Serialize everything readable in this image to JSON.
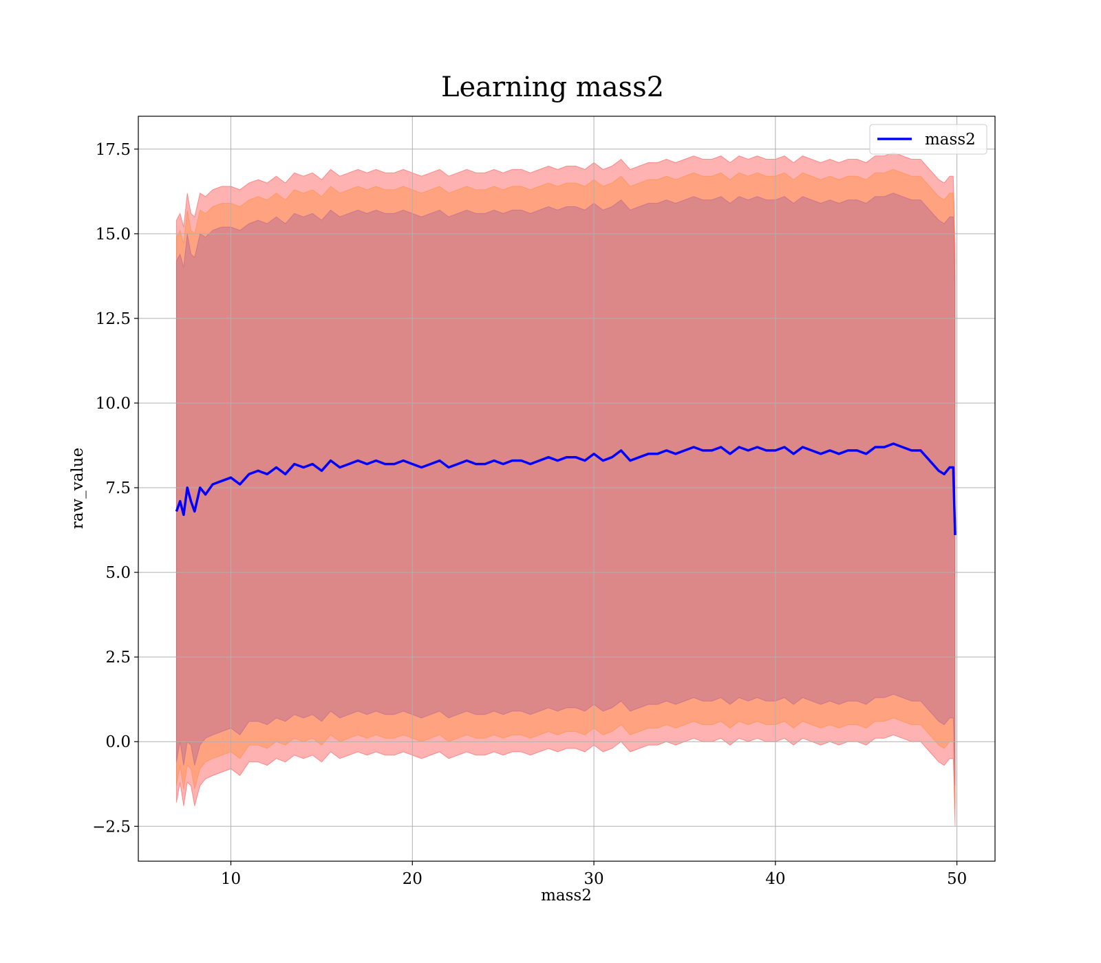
{
  "chart_data": {
    "type": "line",
    "title": "Learning mass2",
    "xlabel": "mass2",
    "ylabel": "raw_value",
    "xlim": [
      4.9,
      52.1
    ],
    "ylim": [
      -3.53,
      18.47
    ],
    "x_ticks": [
      10,
      20,
      30,
      40,
      50
    ],
    "x_tick_labels": [
      "10",
      "20",
      "30",
      "40",
      "50"
    ],
    "y_ticks": [
      -2.5,
      0.0,
      2.5,
      5.0,
      7.5,
      10.0,
      12.5,
      15.0,
      17.5
    ],
    "y_tick_labels": [
      "−2.5",
      "0.0",
      "2.5",
      "5.0",
      "7.5",
      "10.0",
      "12.5",
      "15.0",
      "17.5"
    ],
    "grid": true,
    "legend_position": "top-right",
    "series": [
      {
        "name": "mass2",
        "color": "#0000ff",
        "x": [
          7.0,
          7.2,
          7.4,
          7.6,
          7.8,
          8.0,
          8.3,
          8.6,
          9.0,
          9.5,
          10.0,
          10.5,
          11.0,
          11.5,
          12.0,
          12.5,
          13.0,
          13.5,
          14.0,
          14.5,
          15.0,
          15.5,
          16.0,
          16.5,
          17.0,
          17.5,
          18.0,
          18.5,
          19.0,
          19.5,
          20.0,
          20.5,
          21.0,
          21.5,
          22.0,
          22.5,
          23.0,
          23.5,
          24.0,
          24.5,
          25.0,
          25.5,
          26.0,
          26.5,
          27.0,
          27.5,
          28.0,
          28.5,
          29.0,
          29.5,
          30.0,
          30.5,
          31.0,
          31.5,
          32.0,
          32.5,
          33.0,
          33.5,
          34.0,
          34.5,
          35.0,
          35.5,
          36.0,
          36.5,
          37.0,
          37.5,
          38.0,
          38.5,
          39.0,
          39.5,
          40.0,
          40.5,
          41.0,
          41.5,
          42.0,
          42.5,
          43.0,
          43.5,
          44.0,
          44.5,
          45.0,
          45.5,
          46.0,
          46.5,
          47.0,
          47.5,
          48.0,
          48.5,
          49.0,
          49.3,
          49.6,
          49.8,
          49.9
        ],
        "y": [
          6.8,
          7.1,
          6.7,
          7.5,
          7.1,
          6.8,
          7.5,
          7.3,
          7.6,
          7.7,
          7.8,
          7.6,
          7.9,
          8.0,
          7.9,
          8.1,
          7.9,
          8.2,
          8.1,
          8.2,
          8.0,
          8.3,
          8.1,
          8.2,
          8.3,
          8.2,
          8.3,
          8.2,
          8.2,
          8.3,
          8.2,
          8.1,
          8.2,
          8.3,
          8.1,
          8.2,
          8.3,
          8.2,
          8.2,
          8.3,
          8.2,
          8.3,
          8.3,
          8.2,
          8.3,
          8.4,
          8.3,
          8.4,
          8.4,
          8.3,
          8.5,
          8.3,
          8.4,
          8.6,
          8.3,
          8.4,
          8.5,
          8.5,
          8.6,
          8.5,
          8.6,
          8.7,
          8.6,
          8.6,
          8.7,
          8.5,
          8.7,
          8.6,
          8.7,
          8.6,
          8.6,
          8.7,
          8.5,
          8.7,
          8.6,
          8.5,
          8.6,
          8.5,
          8.6,
          8.6,
          8.5,
          8.7,
          8.7,
          8.8,
          8.7,
          8.6,
          8.6,
          8.3,
          8.0,
          7.9,
          8.1,
          8.1,
          6.1
        ]
      }
    ],
    "bands": [
      {
        "description_color": "#ff0000",
        "x": [
          7.0,
          7.2,
          7.4,
          7.6,
          7.8,
          8.0,
          8.3,
          8.6,
          9.0,
          9.5,
          10.0,
          10.5,
          11.0,
          11.5,
          12.0,
          12.5,
          13.0,
          13.5,
          14.0,
          14.5,
          15.0,
          15.5,
          16.0,
          16.5,
          17.0,
          17.5,
          18.0,
          18.5,
          19.0,
          19.5,
          20.0,
          20.5,
          21.0,
          21.5,
          22.0,
          22.5,
          23.0,
          23.5,
          24.0,
          24.5,
          25.0,
          25.5,
          26.0,
          26.5,
          27.0,
          27.5,
          28.0,
          28.5,
          29.0,
          29.5,
          30.0,
          30.5,
          31.0,
          31.5,
          32.0,
          32.5,
          33.0,
          33.5,
          34.0,
          34.5,
          35.0,
          35.5,
          36.0,
          36.5,
          37.0,
          37.5,
          38.0,
          38.5,
          39.0,
          39.5,
          40.0,
          40.5,
          41.0,
          41.5,
          42.0,
          42.5,
          43.0,
          43.5,
          44.0,
          44.5,
          45.0,
          45.5,
          46.0,
          46.5,
          47.0,
          47.5,
          48.0,
          48.5,
          49.0,
          49.3,
          49.6,
          49.8,
          49.9
        ],
        "lower": [
          -1.8,
          -1.2,
          -1.9,
          -1.2,
          -1.3,
          -1.9,
          -1.3,
          -1.1,
          -1.0,
          -0.9,
          -0.8,
          -1.0,
          -0.6,
          -0.6,
          -0.7,
          -0.5,
          -0.6,
          -0.4,
          -0.5,
          -0.4,
          -0.6,
          -0.3,
          -0.5,
          -0.4,
          -0.3,
          -0.4,
          -0.3,
          -0.4,
          -0.4,
          -0.3,
          -0.4,
          -0.5,
          -0.4,
          -0.3,
          -0.5,
          -0.4,
          -0.3,
          -0.4,
          -0.4,
          -0.3,
          -0.4,
          -0.3,
          -0.3,
          -0.4,
          -0.3,
          -0.2,
          -0.3,
          -0.2,
          -0.2,
          -0.3,
          -0.1,
          -0.3,
          -0.2,
          0.0,
          -0.3,
          -0.2,
          -0.1,
          -0.1,
          0.0,
          -0.1,
          0.0,
          0.1,
          0.0,
          0.0,
          0.1,
          -0.1,
          0.1,
          0.0,
          0.1,
          0.0,
          0.0,
          0.1,
          -0.1,
          0.1,
          0.0,
          -0.1,
          0.0,
          -0.1,
          0.0,
          0.0,
          -0.1,
          0.1,
          0.1,
          0.2,
          0.1,
          0.0,
          0.0,
          -0.3,
          -0.6,
          -0.7,
          -0.5,
          -0.5,
          -2.5
        ],
        "upper": [
          15.4,
          15.6,
          15.2,
          16.2,
          15.6,
          15.5,
          16.2,
          16.1,
          16.3,
          16.4,
          16.4,
          16.3,
          16.5,
          16.6,
          16.5,
          16.7,
          16.5,
          16.8,
          16.7,
          16.8,
          16.6,
          16.9,
          16.7,
          16.8,
          16.9,
          16.8,
          16.9,
          16.8,
          16.8,
          16.9,
          16.8,
          16.7,
          16.8,
          16.9,
          16.7,
          16.8,
          16.9,
          16.8,
          16.8,
          16.9,
          16.8,
          16.9,
          16.9,
          16.8,
          16.9,
          17.0,
          16.9,
          17.0,
          17.0,
          16.9,
          17.1,
          16.9,
          17.0,
          17.2,
          16.9,
          17.0,
          17.1,
          17.1,
          17.2,
          17.1,
          17.2,
          17.3,
          17.2,
          17.2,
          17.3,
          17.1,
          17.3,
          17.2,
          17.3,
          17.2,
          17.2,
          17.3,
          17.1,
          17.3,
          17.2,
          17.1,
          17.2,
          17.1,
          17.2,
          17.2,
          17.1,
          17.3,
          17.3,
          17.4,
          17.3,
          17.2,
          17.2,
          16.9,
          16.6,
          16.5,
          16.7,
          16.7,
          14.7
        ]
      },
      {
        "description_color": "#ff7f0e",
        "x": [
          7.0,
          7.2,
          7.4,
          7.6,
          7.8,
          8.0,
          8.3,
          8.6,
          9.0,
          9.5,
          10.0,
          10.5,
          11.0,
          11.5,
          12.0,
          12.5,
          13.0,
          13.5,
          14.0,
          14.5,
          15.0,
          15.5,
          16.0,
          16.5,
          17.0,
          17.5,
          18.0,
          18.5,
          19.0,
          19.5,
          20.0,
          20.5,
          21.0,
          21.5,
          22.0,
          22.5,
          23.0,
          23.5,
          24.0,
          24.5,
          25.0,
          25.5,
          26.0,
          26.5,
          27.0,
          27.5,
          28.0,
          28.5,
          29.0,
          29.5,
          30.0,
          30.5,
          31.0,
          31.5,
          32.0,
          32.5,
          33.0,
          33.5,
          34.0,
          34.5,
          35.0,
          35.5,
          36.0,
          36.5,
          37.0,
          37.5,
          38.0,
          38.5,
          39.0,
          39.5,
          40.0,
          40.5,
          41.0,
          41.5,
          42.0,
          42.5,
          43.0,
          43.5,
          44.0,
          44.5,
          45.0,
          45.5,
          46.0,
          46.5,
          47.0,
          47.5,
          48.0,
          48.5,
          49.0,
          49.3,
          49.6,
          49.8,
          49.9
        ],
        "lower": [
          -1.3,
          -0.7,
          -1.4,
          -0.7,
          -0.8,
          -1.4,
          -0.8,
          -0.6,
          -0.5,
          -0.4,
          -0.3,
          -0.5,
          -0.1,
          -0.1,
          -0.2,
          0.0,
          -0.1,
          0.1,
          0.0,
          0.1,
          -0.1,
          0.2,
          0.0,
          0.1,
          0.2,
          0.1,
          0.2,
          0.1,
          0.1,
          0.2,
          0.1,
          0.0,
          0.1,
          0.2,
          0.0,
          0.1,
          0.2,
          0.1,
          0.1,
          0.2,
          0.1,
          0.2,
          0.2,
          0.1,
          0.2,
          0.3,
          0.2,
          0.3,
          0.3,
          0.2,
          0.4,
          0.2,
          0.3,
          0.5,
          0.2,
          0.3,
          0.4,
          0.4,
          0.5,
          0.4,
          0.5,
          0.6,
          0.5,
          0.5,
          0.6,
          0.4,
          0.6,
          0.5,
          0.6,
          0.5,
          0.5,
          0.6,
          0.4,
          0.6,
          0.5,
          0.4,
          0.5,
          0.4,
          0.5,
          0.5,
          0.4,
          0.6,
          0.6,
          0.7,
          0.6,
          0.5,
          0.5,
          0.2,
          -0.1,
          -0.2,
          0.0,
          0.0,
          -2.0
        ],
        "upper": [
          14.9,
          15.1,
          14.7,
          15.7,
          15.1,
          15.0,
          15.7,
          15.6,
          15.8,
          15.9,
          15.9,
          15.8,
          16.0,
          16.1,
          16.0,
          16.2,
          16.0,
          16.3,
          16.2,
          16.3,
          16.1,
          16.4,
          16.2,
          16.3,
          16.4,
          16.3,
          16.4,
          16.3,
          16.3,
          16.4,
          16.3,
          16.2,
          16.3,
          16.4,
          16.2,
          16.3,
          16.4,
          16.3,
          16.3,
          16.4,
          16.3,
          16.4,
          16.4,
          16.3,
          16.4,
          16.5,
          16.4,
          16.5,
          16.5,
          16.4,
          16.6,
          16.4,
          16.5,
          16.7,
          16.4,
          16.5,
          16.6,
          16.6,
          16.7,
          16.6,
          16.7,
          16.8,
          16.7,
          16.7,
          16.8,
          16.6,
          16.8,
          16.7,
          16.8,
          16.7,
          16.7,
          16.8,
          16.6,
          16.8,
          16.7,
          16.6,
          16.7,
          16.6,
          16.7,
          16.7,
          16.6,
          16.8,
          16.8,
          16.9,
          16.8,
          16.7,
          16.7,
          16.4,
          16.1,
          16.0,
          16.2,
          16.2,
          14.2
        ]
      },
      {
        "description_color": "#8b4a9c",
        "x": [
          7.0,
          7.2,
          7.4,
          7.6,
          7.8,
          8.0,
          8.3,
          8.6,
          9.0,
          9.5,
          10.0,
          10.5,
          11.0,
          11.5,
          12.0,
          12.5,
          13.0,
          13.5,
          14.0,
          14.5,
          15.0,
          15.5,
          16.0,
          16.5,
          17.0,
          17.5,
          18.0,
          18.5,
          19.0,
          19.5,
          20.0,
          20.5,
          21.0,
          21.5,
          22.0,
          22.5,
          23.0,
          23.5,
          24.0,
          24.5,
          25.0,
          25.5,
          26.0,
          26.5,
          27.0,
          27.5,
          28.0,
          28.5,
          29.0,
          29.5,
          30.0,
          30.5,
          31.0,
          31.5,
          32.0,
          32.5,
          33.0,
          33.5,
          34.0,
          34.5,
          35.0,
          35.5,
          36.0,
          36.5,
          37.0,
          37.5,
          38.0,
          38.5,
          39.0,
          39.5,
          40.0,
          40.5,
          41.0,
          41.5,
          42.0,
          42.5,
          43.0,
          43.5,
          44.0,
          44.5,
          45.0,
          45.5,
          46.0,
          46.5,
          47.0,
          47.5,
          48.0,
          48.5,
          49.0,
          49.3,
          49.6,
          49.8,
          49.9
        ],
        "lower": [
          -0.6,
          0.0,
          -0.7,
          0.0,
          -0.1,
          -0.7,
          -0.1,
          0.1,
          0.2,
          0.3,
          0.4,
          0.2,
          0.6,
          0.6,
          0.5,
          0.7,
          0.6,
          0.8,
          0.7,
          0.8,
          0.6,
          0.9,
          0.7,
          0.8,
          0.9,
          0.8,
          0.9,
          0.8,
          0.8,
          0.9,
          0.8,
          0.7,
          0.8,
          0.9,
          0.7,
          0.8,
          0.9,
          0.8,
          0.8,
          0.9,
          0.8,
          0.9,
          0.9,
          0.8,
          0.9,
          1.0,
          0.9,
          1.0,
          1.0,
          0.9,
          1.1,
          0.9,
          1.0,
          1.2,
          0.9,
          1.0,
          1.1,
          1.1,
          1.2,
          1.1,
          1.2,
          1.3,
          1.2,
          1.2,
          1.3,
          1.1,
          1.3,
          1.2,
          1.3,
          1.2,
          1.2,
          1.3,
          1.1,
          1.3,
          1.2,
          1.1,
          1.2,
          1.1,
          1.2,
          1.2,
          1.1,
          1.3,
          1.3,
          1.4,
          1.3,
          1.2,
          1.2,
          0.9,
          0.6,
          0.5,
          0.7,
          0.7,
          -1.3
        ],
        "upper": [
          14.2,
          14.4,
          14.0,
          15.0,
          14.4,
          14.3,
          15.0,
          14.9,
          15.1,
          15.2,
          15.2,
          15.1,
          15.3,
          15.4,
          15.3,
          15.5,
          15.3,
          15.6,
          15.5,
          15.6,
          15.4,
          15.7,
          15.5,
          15.6,
          15.7,
          15.6,
          15.7,
          15.6,
          15.6,
          15.7,
          15.6,
          15.5,
          15.6,
          15.7,
          15.5,
          15.6,
          15.7,
          15.6,
          15.6,
          15.7,
          15.6,
          15.7,
          15.7,
          15.6,
          15.7,
          15.8,
          15.7,
          15.8,
          15.8,
          15.7,
          15.9,
          15.7,
          15.8,
          16.0,
          15.7,
          15.8,
          15.9,
          15.9,
          16.0,
          15.9,
          16.0,
          16.1,
          16.0,
          16.0,
          16.1,
          15.9,
          16.1,
          16.0,
          16.1,
          16.0,
          16.0,
          16.1,
          15.9,
          16.1,
          16.0,
          15.9,
          16.0,
          15.9,
          16.0,
          16.0,
          15.9,
          16.1,
          16.1,
          16.2,
          16.1,
          16.0,
          16.0,
          15.7,
          15.4,
          15.3,
          15.5,
          15.5,
          13.5
        ]
      }
    ]
  }
}
